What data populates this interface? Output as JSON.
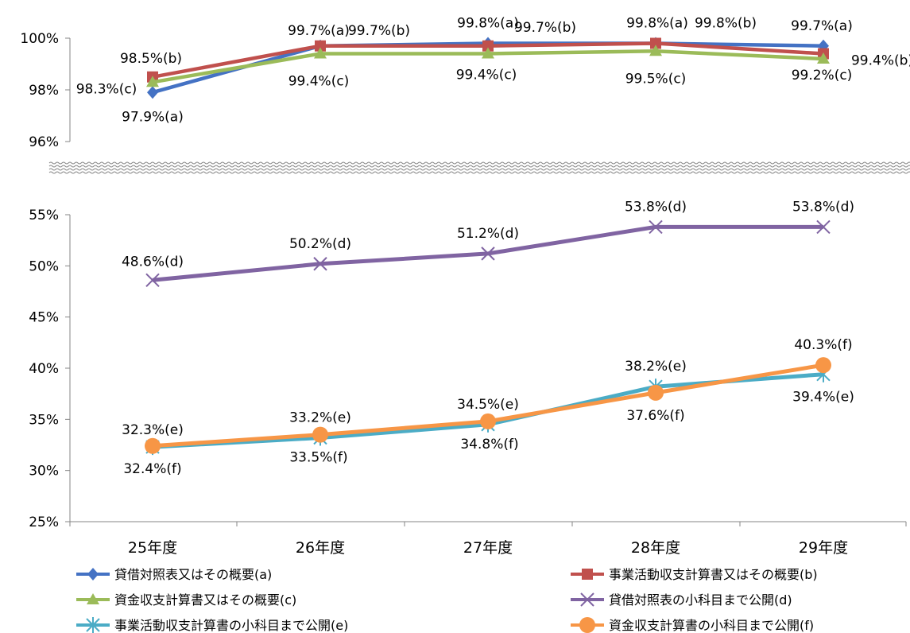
{
  "chart_data": {
    "type": "line",
    "categories": [
      "25年度",
      "26年度",
      "27年度",
      "28年度",
      "29年度"
    ],
    "series": [
      {
        "key": "a",
        "name": "貸借対照表又はその概要(a)",
        "color": "#4472C4",
        "marker": "diamond",
        "values": [
          97.9,
          99.7,
          99.8,
          99.8,
          99.7
        ],
        "labels": [
          "97.9%(a)",
          "99.7%(a)",
          "99.8%(a)",
          "99.8%(a)",
          "99.7%(a)"
        ]
      },
      {
        "key": "b",
        "name": "事業活動収支計算書又はその概要(b)",
        "color": "#C0504D",
        "marker": "square",
        "values": [
          98.5,
          99.7,
          99.7,
          99.8,
          99.4
        ],
        "labels": [
          "98.5%(b)",
          "99.7%(b)",
          "99.7%(b)",
          "99.8%(b)",
          "99.4%(b)"
        ]
      },
      {
        "key": "c",
        "name": "資金収支計算書又はその概要(c)",
        "color": "#9BBB59",
        "marker": "triangle",
        "values": [
          98.3,
          99.4,
          99.4,
          99.5,
          99.2
        ],
        "labels": [
          "98.3%(c)",
          "99.4%(c)",
          "99.4%(c)",
          "99.5%(c)",
          "99.2%(c)"
        ]
      },
      {
        "key": "d",
        "name": "貸借対照表の小科目まで公開(d)",
        "color": "#8064A2",
        "marker": "x",
        "values": [
          48.6,
          50.2,
          51.2,
          53.8,
          53.8
        ],
        "labels": [
          "48.6%(d)",
          "50.2%(d)",
          "51.2%(d)",
          "53.8%(d)",
          "53.8%(d)"
        ]
      },
      {
        "key": "e",
        "name": "事業活動収支計算書の小科目まで公開(e)",
        "color": "#4BACC6",
        "marker": "star",
        "values": [
          32.3,
          33.2,
          34.5,
          38.2,
          39.4
        ],
        "labels": [
          "32.3%(e)",
          "33.2%(e)",
          "34.5%(e)",
          "38.2%(e)",
          "39.4%(e)"
        ]
      },
      {
        "key": "f",
        "name": "資金収支計算書の小科目まで公開(f)",
        "color": "#F79646",
        "marker": "circle",
        "values": [
          32.4,
          33.5,
          34.8,
          37.6,
          40.3
        ],
        "labels": [
          "32.4%(f)",
          "33.5%(f)",
          "34.8%(f)",
          "37.6%(f)",
          "40.3%(f)"
        ]
      }
    ],
    "y_axis_upper": {
      "ticks": [
        "100%",
        "98%",
        "96%"
      ],
      "values": [
        100,
        98,
        96
      ],
      "ylim": [
        96,
        100
      ]
    },
    "y_axis_lower": {
      "ticks": [
        "55%",
        "50%",
        "45%",
        "40%",
        "35%",
        "30%",
        "25%"
      ],
      "values": [
        55,
        50,
        45,
        40,
        35,
        30,
        25
      ],
      "ylim": [
        25,
        55
      ]
    },
    "axis_break": true,
    "grid": false,
    "legend_position": "bottom"
  }
}
